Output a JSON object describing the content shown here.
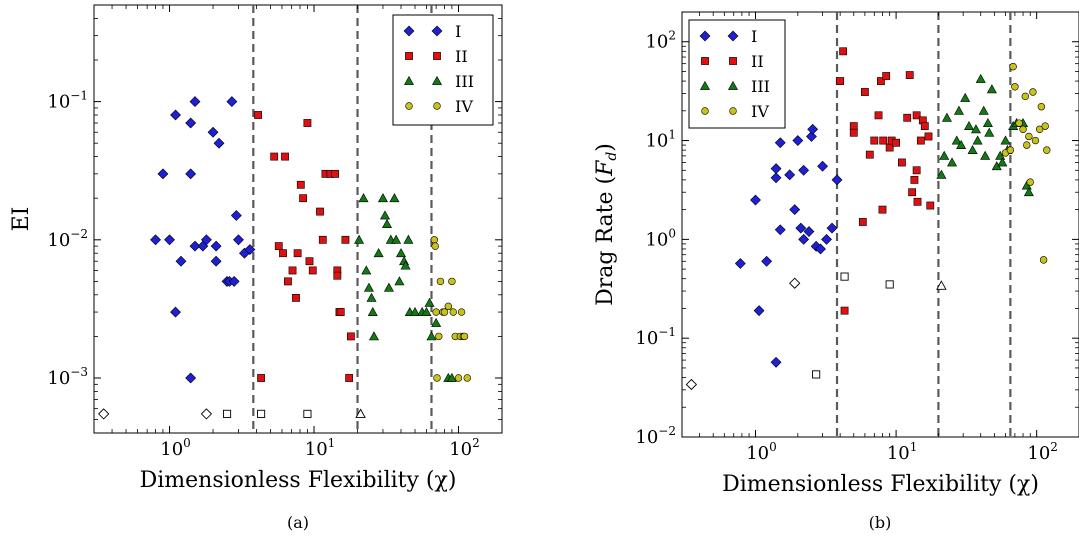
{
  "chart_data": [
    {
      "type": "scatter",
      "caption": "(a)",
      "xlabel": "Dimensionless Flexibility (χ)",
      "ylabel": "EI",
      "xscale": "log",
      "yscale": "log",
      "xlim": [
        0.3,
        200
      ],
      "ylim": [
        0.0004,
        0.5
      ],
      "xticks": [
        1,
        10,
        100
      ],
      "xtick_labels": [
        {
          "base": "10",
          "exp": "0"
        },
        {
          "base": "10",
          "exp": "1"
        },
        {
          "base": "10",
          "exp": "2"
        }
      ],
      "yticks": [
        0.001,
        0.01,
        0.1
      ],
      "ytick_labels": [
        {
          "base": "10",
          "exp": "−3"
        },
        {
          "base": "10",
          "exp": "−2"
        },
        {
          "base": "10",
          "exp": "−1"
        }
      ],
      "vlines": [
        3.8,
        20,
        65
      ],
      "grid": false,
      "legend_placement": "top-right",
      "series": [
        {
          "name": "I",
          "marker": "diamond",
          "color": "#1f1fd6",
          "points": [
            [
              0.8,
              0.01
            ],
            [
              0.9,
              0.03
            ],
            [
              1.0,
              0.01
            ],
            [
              1.1,
              0.08
            ],
            [
              1.2,
              0.007
            ],
            [
              1.1,
              0.003
            ],
            [
              1.4,
              0.07
            ],
            [
              1.4,
              0.03
            ],
            [
              1.5,
              0.1
            ],
            [
              1.5,
              0.009
            ],
            [
              1.7,
              0.009
            ],
            [
              1.8,
              0.01
            ],
            [
              2.0,
              0.06
            ],
            [
              2.1,
              0.009
            ],
            [
              2.1,
              0.007
            ],
            [
              2.2,
              0.05
            ],
            [
              2.5,
              0.005
            ],
            [
              2.6,
              0.005
            ],
            [
              2.7,
              0.1
            ],
            [
              2.8,
              0.005
            ],
            [
              2.9,
              0.015
            ],
            [
              3.0,
              0.01
            ],
            [
              3.3,
              0.008
            ],
            [
              3.6,
              0.0085
            ],
            [
              1.4,
              0.001
            ]
          ]
        },
        {
          "name": "II",
          "marker": "square",
          "color": "#dd1111",
          "points": [
            [
              4.1,
              0.08
            ],
            [
              4.3,
              0.001
            ],
            [
              5.3,
              0.04
            ],
            [
              5.7,
              0.009
            ],
            [
              6.3,
              0.04
            ],
            [
              6.1,
              0.008
            ],
            [
              6.6,
              0.005
            ],
            [
              7.1,
              0.006
            ],
            [
              7.5,
              0.0038
            ],
            [
              7.7,
              0.008
            ],
            [
              8.1,
              0.025
            ],
            [
              8.4,
              0.02
            ],
            [
              9.0,
              0.07
            ],
            [
              9.3,
              0.007
            ],
            [
              9.8,
              0.006
            ],
            [
              11.0,
              0.016
            ],
            [
              11.5,
              0.01
            ],
            [
              12.0,
              0.03
            ],
            [
              13.0,
              0.03
            ],
            [
              14.0,
              0.03
            ],
            [
              14.5,
              0.006
            ],
            [
              14.5,
              0.0055
            ],
            [
              15.0,
              0.003
            ],
            [
              15.3,
              0.003
            ],
            [
              16.5,
              0.01
            ],
            [
              17.5,
              0.001
            ],
            [
              18.0,
              0.002
            ]
          ]
        },
        {
          "name": "III",
          "marker": "triangle",
          "color": "#127a12",
          "points": [
            [
              20.5,
              0.01
            ],
            [
              22,
              0.02
            ],
            [
              23,
              0.006
            ],
            [
              24,
              0.0045
            ],
            [
              25,
              0.0038
            ],
            [
              25.5,
              0.003
            ],
            [
              26,
              0.002
            ],
            [
              28,
              0.008
            ],
            [
              30,
              0.02
            ],
            [
              31,
              0.015
            ],
            [
              32,
              0.013
            ],
            [
              33,
              0.0045
            ],
            [
              34,
              0.01
            ],
            [
              36,
              0.02
            ],
            [
              37,
              0.01
            ],
            [
              39,
              0.005
            ],
            [
              40,
              0.008
            ],
            [
              42,
              0.007
            ],
            [
              43,
              0.0065
            ],
            [
              45,
              0.01
            ],
            [
              46,
              0.003
            ],
            [
              50,
              0.003
            ],
            [
              56,
              0.003
            ],
            [
              60,
              0.003
            ],
            [
              63,
              0.0035
            ],
            [
              65,
              0.002
            ],
            [
              70,
              0.0025
            ],
            [
              85,
              0.001
            ],
            [
              90,
              0.001
            ]
          ]
        },
        {
          "name": "IV",
          "marker": "circle",
          "color": "#c9c21a",
          "points": [
            [
              68,
              0.01
            ],
            [
              69,
              0.009
            ],
            [
              70,
              0.003
            ],
            [
              71,
              0.001
            ],
            [
              73,
              0.002
            ],
            [
              75,
              0.005
            ],
            [
              78,
              0.003
            ],
            [
              80,
              0.003
            ],
            [
              85,
              0.0033
            ],
            [
              90,
              0.005
            ],
            [
              92,
              0.003
            ],
            [
              95,
              0.002
            ],
            [
              100,
              0.001
            ],
            [
              103,
              0.002
            ],
            [
              105,
              0.003
            ],
            [
              108,
              0.002
            ],
            [
              110,
              0.002
            ],
            [
              115,
              0.001
            ]
          ]
        }
      ],
      "open_markers": [
        {
          "marker": "diamond",
          "x": 0.35,
          "y": 0.00055
        },
        {
          "marker": "diamond",
          "x": 1.8,
          "y": 0.00055
        },
        {
          "marker": "square",
          "x": 2.5,
          "y": 0.00055
        },
        {
          "marker": "square",
          "x": 4.3,
          "y": 0.00055
        },
        {
          "marker": "square",
          "x": 9.0,
          "y": 0.00055
        },
        {
          "marker": "triangle",
          "x": 21,
          "y": 0.00055
        }
      ]
    },
    {
      "type": "scatter",
      "caption": "(b)",
      "xlabel": "Dimensionless Flexibility (χ)",
      "ylabel": "Drag Rate (Fₐ)",
      "ylabel_main": "Drag Rate (",
      "ylabel_var": "F",
      "ylabel_sub": "d",
      "ylabel_close": ")",
      "xscale": "log",
      "yscale": "log",
      "xlim": [
        0.3,
        200
      ],
      "ylim": [
        0.01,
        200
      ],
      "xticks": [
        1,
        10,
        100
      ],
      "xtick_labels": [
        {
          "base": "10",
          "exp": "0"
        },
        {
          "base": "10",
          "exp": "1"
        },
        {
          "base": "10",
          "exp": "2"
        }
      ],
      "yticks": [
        0.01,
        0.1,
        1,
        10,
        100
      ],
      "ytick_labels": [
        {
          "base": "10",
          "exp": "−2"
        },
        {
          "base": "10",
          "exp": "−1"
        },
        {
          "base": "10",
          "exp": "0"
        },
        {
          "base": "10",
          "exp": "1"
        },
        {
          "base": "10",
          "exp": "2"
        }
      ],
      "vlines": [
        3.8,
        20,
        65
      ],
      "grid": false,
      "legend_placement": "top-left",
      "series": [
        {
          "name": "I",
          "marker": "diamond",
          "color": "#1f1fd6",
          "points": [
            [
              0.78,
              0.57
            ],
            [
              1.0,
              2.5
            ],
            [
              1.06,
              0.19
            ],
            [
              1.2,
              0.6
            ],
            [
              1.4,
              0.057
            ],
            [
              1.4,
              4.2
            ],
            [
              1.4,
              5.2
            ],
            [
              1.5,
              9.5
            ],
            [
              1.5,
              1.25
            ],
            [
              1.75,
              4.5
            ],
            [
              1.9,
              2.0
            ],
            [
              2.0,
              10.0
            ],
            [
              2.1,
              1.3
            ],
            [
              2.2,
              5.0
            ],
            [
              2.2,
              1.0
            ],
            [
              2.4,
              1.2
            ],
            [
              2.5,
              11.0
            ],
            [
              2.55,
              13.0
            ],
            [
              2.7,
              0.85
            ],
            [
              2.9,
              0.8
            ],
            [
              3.0,
              5.5
            ],
            [
              3.2,
              1.0
            ],
            [
              3.5,
              1.3
            ],
            [
              3.8,
              4.0
            ]
          ]
        },
        {
          "name": "II",
          "marker": "square",
          "color": "#dd1111",
          "points": [
            [
              4.0,
              40
            ],
            [
              4.2,
              80
            ],
            [
              4.3,
              0.19
            ],
            [
              5.0,
              14
            ],
            [
              5.0,
              12
            ],
            [
              6.0,
              31
            ],
            [
              5.8,
              1.5
            ],
            [
              6.5,
              7.2
            ],
            [
              7.0,
              10
            ],
            [
              7.5,
              18
            ],
            [
              7.8,
              40
            ],
            [
              8.0,
              2.0
            ],
            [
              8.1,
              10
            ],
            [
              8.5,
              45
            ],
            [
              9.0,
              8.5
            ],
            [
              9.3,
              10
            ],
            [
              10.0,
              9.5
            ],
            [
              11.0,
              6.0
            ],
            [
              12.0,
              17
            ],
            [
              12.5,
              46
            ],
            [
              13.0,
              3.0
            ],
            [
              13.5,
              4.0
            ],
            [
              14.0,
              5.0
            ],
            [
              14.0,
              18
            ],
            [
              14.2,
              2.4
            ],
            [
              15.0,
              10
            ],
            [
              15.5,
              16
            ],
            [
              16.0,
              14
            ],
            [
              17.0,
              11
            ],
            [
              17.5,
              2.2
            ]
          ]
        },
        {
          "name": "III",
          "marker": "triangle",
          "color": "#127a12",
          "points": [
            [
              21,
              4.5
            ],
            [
              22,
              7.0
            ],
            [
              23,
              17
            ],
            [
              25,
              6.0
            ],
            [
              27,
              10
            ],
            [
              28,
              20
            ],
            [
              29,
              9
            ],
            [
              31,
              27
            ],
            [
              33,
              14
            ],
            [
              35,
              8
            ],
            [
              37,
              13
            ],
            [
              38,
              10
            ],
            [
              40,
              42
            ],
            [
              42,
              20
            ],
            [
              43,
              7
            ],
            [
              45,
              15
            ],
            [
              46,
              12
            ],
            [
              48,
              33
            ],
            [
              52,
              5.5
            ],
            [
              55,
              7
            ],
            [
              57,
              6
            ],
            [
              60,
              10
            ],
            [
              62,
              8
            ],
            [
              68,
              14
            ],
            [
              72,
              15
            ],
            [
              80,
              15
            ],
            [
              85,
              3.5
            ],
            [
              88,
              3.0
            ]
          ]
        },
        {
          "name": "IV",
          "marker": "circle",
          "color": "#c9c21a",
          "points": [
            [
              60,
              7.5
            ],
            [
              65,
              8
            ],
            [
              68,
              56
            ],
            [
              70,
              35
            ],
            [
              75,
              15
            ],
            [
              80,
              13
            ],
            [
              83,
              28
            ],
            [
              85,
              9
            ],
            [
              88,
              11
            ],
            [
              90,
              3.8
            ],
            [
              94,
              31
            ],
            [
              98,
              10
            ],
            [
              105,
              13
            ],
            [
              108,
              22
            ],
            [
              115,
              14
            ],
            [
              118,
              8
            ],
            [
              112,
              0.62
            ]
          ]
        }
      ],
      "open_markers": [
        {
          "marker": "diamond",
          "x": 0.35,
          "y": 0.034
        },
        {
          "marker": "diamond",
          "x": 1.9,
          "y": 0.36
        },
        {
          "marker": "square",
          "x": 2.7,
          "y": 0.043
        },
        {
          "marker": "square",
          "x": 4.3,
          "y": 0.42
        },
        {
          "marker": "square",
          "x": 9.0,
          "y": 0.35
        },
        {
          "marker": "triangle",
          "x": 21,
          "y": 0.34
        }
      ]
    }
  ]
}
